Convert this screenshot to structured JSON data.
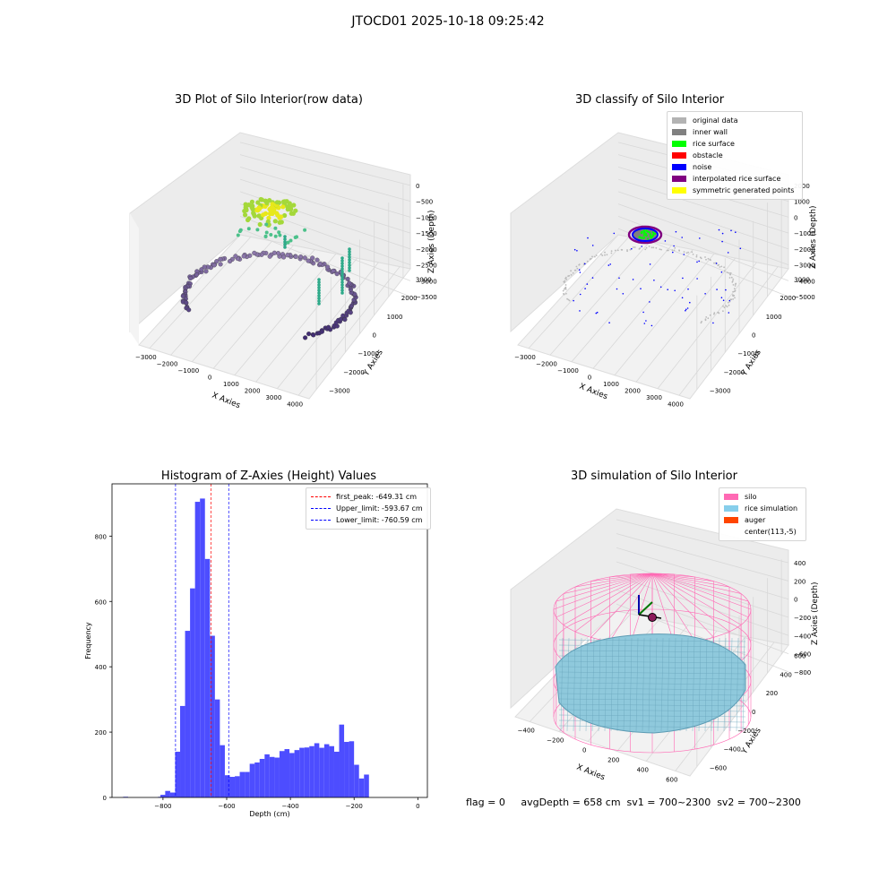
{
  "suptitle": "JTOCD01 2025-10-18 09:25:42",
  "panels": {
    "raw": {
      "title": "3D Plot of Silo Interior(row data)",
      "xlabel": "X Axies",
      "ylabel": "Y Axies",
      "zlabel": "Z Axies (Depth)",
      "xticks": [
        "−3000",
        "−2000",
        "−1000",
        "0",
        "1000",
        "2000",
        "3000",
        "4000"
      ],
      "yticks": [
        "3000",
        "2000",
        "1000",
        "0",
        "−1000",
        "−2000",
        "−3000"
      ],
      "zticks": [
        "0",
        "−500",
        "−1000",
        "−1500",
        "−2000",
        "−2500",
        "−3000",
        "−3500"
      ]
    },
    "classify": {
      "title": "3D classify of Silo Interior",
      "xlabel": "X Axies",
      "ylabel": "Y Axies",
      "zlabel": "Z Axies (Depth)",
      "xticks": [
        "−3000",
        "−2000",
        "−1000",
        "0",
        "1000",
        "2000",
        "3000",
        "4000"
      ],
      "yticks": [
        "3000",
        "2000",
        "1000",
        "0",
        "−1000",
        "−2000",
        "−3000"
      ],
      "zticks": [
        "2000",
        "1000",
        "0",
        "−1000",
        "−2000",
        "−3000",
        "−4000",
        "−5000"
      ],
      "legend": [
        {
          "label": "original data",
          "color": "#b3b3b3"
        },
        {
          "label": "inner wall",
          "color": "#808080"
        },
        {
          "label": "rice surface",
          "color": "#00ff00"
        },
        {
          "label": "obstacle",
          "color": "#ff0000"
        },
        {
          "label": "noise",
          "color": "#0000ff"
        },
        {
          "label": "interpolated rice surface",
          "color": "#800080"
        },
        {
          "label": "symmetric generated points",
          "color": "#ffff00"
        }
      ]
    },
    "simulation": {
      "title": "3D simulation of Silo Interior",
      "xlabel": "X Axies",
      "ylabel": "Y Axies",
      "zlabel": "Z Axies (Depth)",
      "xticks": [
        "−400",
        "−200",
        "0",
        "200",
        "400",
        "600"
      ],
      "yticks": [
        "600",
        "400",
        "200",
        "0",
        "−200",
        "−400",
        "−600"
      ],
      "zticks": [
        "400",
        "200",
        "0",
        "−200",
        "−400",
        "−600",
        "−800"
      ],
      "legend": [
        {
          "label": "silo",
          "color": "#ff69b4"
        },
        {
          "label": "rice simulation",
          "color": "#87ceeb"
        },
        {
          "label": "auger",
          "color": "#ff4500"
        },
        {
          "label": "center(113,-5)",
          "color": ""
        }
      ]
    }
  },
  "chart_data": [
    {
      "type": "scatter",
      "title": "3D Plot of Silo Interior(row data)",
      "xlabel": "X Axies",
      "ylabel": "Y Axies",
      "zlabel": "Z Axies (Depth)",
      "xlim": [
        -3500,
        4500
      ],
      "ylim": [
        -3500,
        3500
      ],
      "zlim": [
        -3800,
        200
      ]
    },
    {
      "type": "scatter",
      "title": "3D classify of Silo Interior",
      "xlabel": "X Axies",
      "ylabel": "Y Axies",
      "zlabel": "Z Axies (Depth)",
      "series": [
        {
          "name": "original data"
        },
        {
          "name": "inner wall"
        },
        {
          "name": "rice surface"
        },
        {
          "name": "obstacle"
        },
        {
          "name": "noise"
        },
        {
          "name": "interpolated rice surface"
        },
        {
          "name": "symmetric generated points"
        }
      ]
    },
    {
      "type": "bar",
      "title": "Histogram of Z-Axies (Height) Values",
      "xlabel": "Depth (cm)",
      "ylabel": "Frequency",
      "xlim": [
        -960,
        30
      ],
      "ylim": [
        0,
        960
      ],
      "xticks": [
        -800,
        -600,
        -400,
        -200,
        0
      ],
      "yticks": [
        0,
        200,
        400,
        600,
        800
      ],
      "bin_width": 15.6,
      "bin_start": -793,
      "values": [
        20,
        15,
        140,
        280,
        510,
        640,
        905,
        915,
        730,
        495,
        300,
        160,
        68,
        63,
        65,
        78,
        78,
        103,
        107,
        118,
        132,
        124,
        122,
        142,
        148,
        136,
        145,
        152,
        153,
        157,
        166,
        152,
        163,
        157,
        140,
        223,
        170,
        172,
        100,
        58,
        70
      ],
      "extra_bins": [
        {
          "x": -925,
          "value": 2
        },
        {
          "x": -815,
          "value": 2
        },
        {
          "x": -808,
          "value": 8
        }
      ],
      "lines": [
        {
          "name": "first_peak: -649.31 cm",
          "x": -649.31,
          "color": "#ff0000"
        },
        {
          "name": "Upper_limit: -593.67 cm",
          "x": -593.67,
          "color": "#0000ff"
        },
        {
          "name": "Lower_limit: -760.59 cm",
          "x": -760.59,
          "color": "#0000ff"
        }
      ]
    },
    {
      "type": "scatter",
      "title": "3D simulation of Silo Interior",
      "xlabel": "X Axies",
      "ylabel": "Y Axies",
      "zlabel": "Z Axies (Depth)",
      "series": [
        {
          "name": "silo"
        },
        {
          "name": "rice simulation"
        },
        {
          "name": "auger"
        },
        {
          "name": "center(113,-5)"
        }
      ]
    }
  ],
  "footer": "flag = 0     avgDepth = 658 cm  sv1 = 700~2300  sv2 = 700~2300"
}
